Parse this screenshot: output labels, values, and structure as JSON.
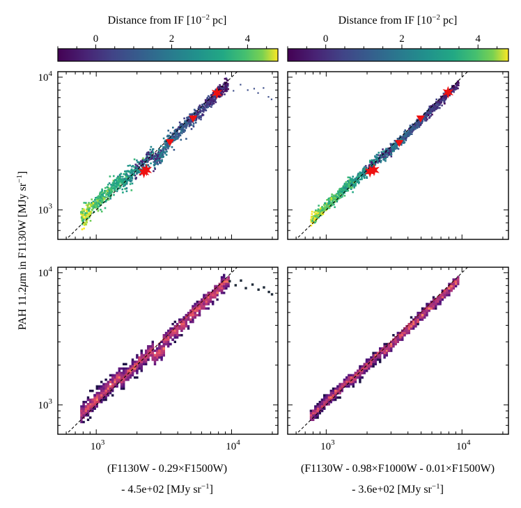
{
  "chart_data": [
    {
      "type": "scatter",
      "panel": "top-left",
      "colorbar": {
        "title_prefix": "Distance from IF [10",
        "title_exp": "−2",
        "title_suffix": " pc]",
        "ticks": [
          0,
          2,
          4
        ],
        "range": [
          -1,
          4.8
        ],
        "colormap": "viridis"
      },
      "xlabel_line1": "(F1130W - 0.29×F1500W)",
      "xlabel_line2_prefix": "- 4.5e+02 [MJy sr",
      "xlabel_line2_exp": "−1",
      "xlabel_line2_suffix": "]",
      "xscale": "log",
      "yscale": "log",
      "xlim": [
        520,
        22000
      ],
      "ylim": [
        600,
        11000
      ],
      "xticks": [
        "10^3",
        "10^4"
      ],
      "one_to_one_line": true,
      "markers": [
        {
          "x": 2250,
          "y": 1930,
          "symbol": "star"
        },
        {
          "x": 2350,
          "y": 2000,
          "symbol": "star"
        },
        {
          "x": 3500,
          "y": 3250,
          "symbol": "triangle"
        },
        {
          "x": 5200,
          "y": 4900,
          "symbol": "triangle"
        },
        {
          "x": 7800,
          "y": 7600,
          "symbol": "star"
        }
      ],
      "outlier_points": [
        [
          8500,
          8300
        ],
        [
          9200,
          8600
        ],
        [
          10200,
          8000
        ],
        [
          11500,
          8900
        ],
        [
          13000,
          8100
        ],
        [
          14500,
          8300
        ],
        [
          15500,
          7700
        ],
        [
          17000,
          8400
        ],
        [
          18500,
          7200
        ],
        [
          19500,
          6900
        ]
      ]
    },
    {
      "type": "scatter",
      "panel": "top-right",
      "colorbar": {
        "title_prefix": "Distance from IF [10",
        "title_exp": "−2",
        "title_suffix": " pc]",
        "ticks": [
          0,
          2,
          4
        ],
        "range": [
          -1,
          4.8
        ],
        "colormap": "viridis"
      },
      "xlabel_line1": "(F1130W - 0.98×F1000W - 0.01×F1500W)",
      "xlabel_line2_prefix": "- 3.6e+02 [MJy sr",
      "xlabel_line2_exp": "−1",
      "xlabel_line2_suffix": "]",
      "xscale": "log",
      "yscale": "log",
      "xlim": [
        520,
        22000
      ],
      "ylim": [
        600,
        11000
      ],
      "xticks": [
        "10^3",
        "10^4"
      ],
      "one_to_one_line": true,
      "markers": [
        {
          "x": 2100,
          "y": 1950,
          "symbol": "star"
        },
        {
          "x": 2250,
          "y": 2000,
          "symbol": "star"
        },
        {
          "x": 3450,
          "y": 3200,
          "symbol": "triangle"
        },
        {
          "x": 4950,
          "y": 4900,
          "symbol": "triangle"
        },
        {
          "x": 7900,
          "y": 7700,
          "symbol": "star"
        }
      ],
      "outlier_points": []
    },
    {
      "type": "heatmap",
      "panel": "bottom-left",
      "xscale": "log",
      "yscale": "log",
      "xlim": [
        520,
        22000
      ],
      "ylim": [
        600,
        11000
      ],
      "xticks": [
        "10^3",
        "10^4"
      ],
      "one_to_one_line": true,
      "colormap": "magma",
      "outlier_points": [
        [
          9500,
          8800
        ],
        [
          10500,
          8200
        ],
        [
          11500,
          8900
        ],
        [
          12500,
          7800
        ],
        [
          14000,
          8300
        ],
        [
          15500,
          7600
        ],
        [
          17000,
          7900
        ],
        [
          18500,
          7300
        ],
        [
          19500,
          7000
        ]
      ]
    },
    {
      "type": "heatmap",
      "panel": "bottom-right",
      "xscale": "log",
      "yscale": "log",
      "xlim": [
        520,
        22000
      ],
      "ylim": [
        600,
        11000
      ],
      "xticks": [
        "10^3",
        "10^4"
      ],
      "one_to_one_line": true,
      "colormap": "magma",
      "outlier_points": []
    }
  ],
  "shared": {
    "ylabel_prefix": "PAH 11.2",
    "ylabel_mu": "μ",
    "ylabel_mid": "m in F1130W [MJy sr",
    "ylabel_exp": "−1",
    "ylabel_suffix": "]",
    "yticks": [
      "10^3",
      "10^4"
    ],
    "tick_base": "10",
    "tick_exp_3": "3",
    "tick_exp_4": "4"
  }
}
